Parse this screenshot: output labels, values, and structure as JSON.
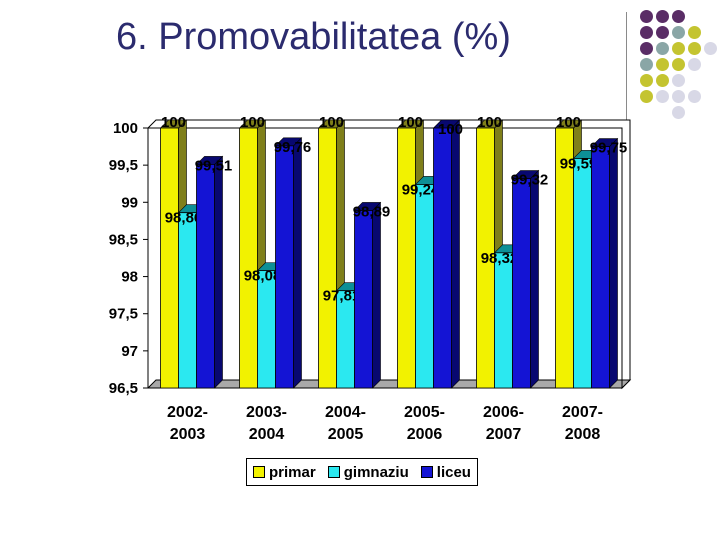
{
  "slide": {
    "title": "6. Promovabilitatea (%)"
  },
  "palette": {
    "primar": "#f2f200",
    "gimnaziu": "#2be8f0",
    "liceu": "#1414d4",
    "deco": [
      "#5a2d66",
      "#8aa6a6",
      "#c4c430",
      "#d8d8e6"
    ]
  },
  "chart_data": {
    "type": "bar",
    "categories": [
      [
        "2002-",
        "2003"
      ],
      [
        "2003-",
        "2004"
      ],
      [
        "2004-",
        "2005"
      ],
      [
        "2005-",
        "2006"
      ],
      [
        "2006-",
        "2007"
      ],
      [
        "2007-",
        "2008"
      ]
    ],
    "series": [
      {
        "name": "primar",
        "values": [
          100,
          100,
          100,
          100,
          100,
          100
        ],
        "labels": [
          "100",
          "100",
          "100",
          "100",
          "100",
          "100"
        ]
      },
      {
        "name": "gimnaziu",
        "values": [
          98.86,
          98.08,
          97.81,
          99.24,
          98.32,
          99.59
        ],
        "labels": [
          "98,86",
          "98,08",
          "97,81",
          "99,24",
          "98,32",
          "99,59"
        ]
      },
      {
        "name": "liceu",
        "values": [
          99.51,
          99.76,
          98.89,
          100,
          99.32,
          99.75
        ],
        "labels": [
          "99,51",
          "99,76",
          "98,89",
          "100",
          "99,32",
          "99,75"
        ]
      }
    ],
    "ylim": [
      96.5,
      100
    ],
    "yticks": [
      "96,5",
      "97",
      "97,5",
      "98",
      "98,5",
      "99",
      "99,5",
      "100"
    ],
    "grid": false,
    "legend_position": "bottom"
  }
}
